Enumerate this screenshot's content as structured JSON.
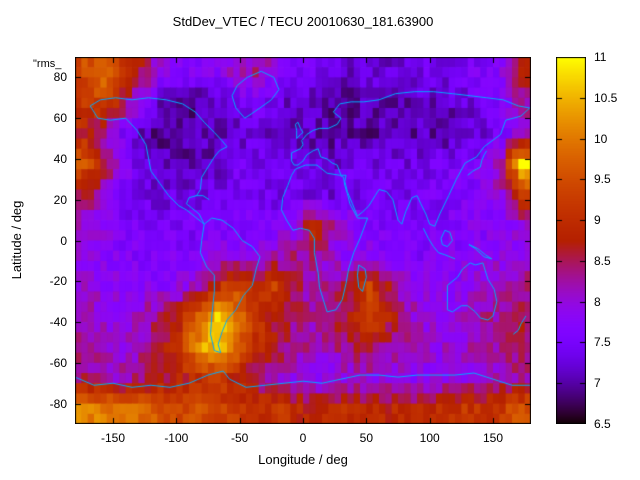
{
  "title": "StdDev_VTEC / TECU 20010630_181.63900",
  "key_label": "\"rms_",
  "axes": {
    "xlabel": "Longitude / deg",
    "ylabel": "Latitude / deg",
    "x_ticks": [
      -150,
      -100,
      -50,
      0,
      50,
      100,
      150
    ],
    "y_ticks": [
      -80,
      -60,
      -40,
      -20,
      0,
      20,
      40,
      60,
      80
    ],
    "xlim": [
      -180,
      180
    ],
    "ylim": [
      -90,
      90
    ]
  },
  "colorbar": {
    "ticks": [
      6.5,
      7,
      7.5,
      8,
      8.5,
      9,
      9.5,
      10,
      10.5,
      11
    ],
    "min": 6.5,
    "max": 11
  },
  "colors": {
    "coastline": "#00aaff",
    "background": "#ffffff",
    "text": "#000000",
    "palette_description": "gnuplot pm3d black-purple-violet-red-orange-yellow"
  },
  "chart_data": {
    "type": "heatmap",
    "title": "StdDev_VTEC / TECU 20010630_181.63900",
    "xlabel": "Longitude / deg",
    "ylabel": "Latitude / deg",
    "xlim": [
      -180,
      180
    ],
    "ylim": [
      -90,
      90
    ],
    "zlim": [
      6.5,
      11
    ],
    "grid_step_deg": 15,
    "rows_order": "north-to-south",
    "lon_centers": [
      -172.5,
      -157.5,
      -142.5,
      -127.5,
      -112.5,
      -97.5,
      -82.5,
      -67.5,
      -52.5,
      -37.5,
      -22.5,
      -7.5,
      7.5,
      22.5,
      37.5,
      52.5,
      67.5,
      82.5,
      97.5,
      112.5,
      127.5,
      142.5,
      157.5,
      172.5
    ],
    "lat_centers": [
      82.5,
      67.5,
      52.5,
      37.5,
      22.5,
      7.5,
      -7.5,
      -22.5,
      -37.5,
      -52.5,
      -67.5,
      -82.5
    ],
    "values": [
      [
        9.5,
        9.8,
        9.2,
        8.6,
        7.9,
        7.6,
        7.6,
        7.8,
        8.1,
        8.3,
        7.9,
        7.6,
        7.4,
        7.3,
        7.2,
        7.3,
        7.2,
        7.3,
        7.4,
        7.3,
        7.5,
        7.6,
        7.8,
        8.8
      ],
      [
        9.2,
        9.4,
        8.6,
        7.8,
        7.2,
        7.0,
        7.0,
        7.1,
        7.3,
        7.5,
        7.3,
        7.2,
        7.1,
        7.0,
        7.0,
        7.1,
        7.0,
        7.1,
        7.2,
        7.1,
        7.3,
        7.4,
        7.6,
        8.3
      ],
      [
        8.8,
        8.3,
        7.6,
        7.1,
        6.9,
        6.9,
        7.0,
        7.1,
        7.2,
        7.3,
        7.2,
        7.1,
        7.1,
        7.0,
        7.0,
        7.0,
        7.1,
        7.0,
        7.1,
        7.0,
        7.2,
        7.3,
        7.5,
        8.0
      ],
      [
        9.6,
        8.7,
        7.8,
        7.3,
        7.1,
        7.0,
        7.1,
        7.2,
        7.4,
        7.4,
        7.3,
        7.3,
        7.2,
        7.2,
        7.3,
        7.3,
        7.4,
        7.3,
        7.4,
        7.5,
        7.5,
        7.7,
        8.5,
        10.8
      ],
      [
        8.6,
        8.0,
        7.6,
        7.4,
        7.3,
        7.3,
        7.4,
        7.4,
        7.5,
        7.5,
        7.4,
        7.4,
        7.4,
        7.3,
        7.4,
        7.4,
        7.5,
        7.4,
        7.5,
        7.5,
        7.6,
        7.7,
        8.0,
        9.3
      ],
      [
        8.0,
        7.8,
        7.6,
        7.5,
        7.4,
        7.5,
        7.5,
        7.6,
        7.6,
        7.6,
        7.6,
        7.8,
        9.0,
        8.4,
        7.8,
        7.6,
        7.6,
        7.5,
        7.6,
        7.6,
        7.7,
        7.7,
        7.8,
        8.0
      ],
      [
        7.9,
        7.8,
        7.7,
        7.6,
        7.6,
        7.6,
        7.7,
        7.8,
        7.8,
        7.8,
        8.1,
        8.3,
        8.4,
        8.0,
        7.8,
        7.8,
        7.7,
        7.6,
        7.6,
        7.7,
        7.7,
        7.8,
        7.9,
        7.9
      ],
      [
        8.0,
        7.9,
        7.8,
        7.8,
        7.8,
        7.9,
        8.2,
        9.0,
        9.4,
        8.8,
        9.3,
        8.6,
        8.2,
        8.2,
        8.6,
        9.3,
        8.6,
        8.0,
        7.9,
        7.8,
        7.9,
        8.0,
        8.2,
        8.4
      ],
      [
        8.2,
        8.0,
        8.0,
        8.2,
        8.4,
        8.8,
        9.8,
        10.6,
        10.0,
        9.2,
        8.8,
        8.4,
        8.2,
        8.4,
        8.8,
        9.4,
        8.8,
        8.2,
        8.0,
        7.9,
        8.0,
        8.2,
        8.4,
        8.6
      ],
      [
        8.2,
        8.1,
        8.0,
        8.2,
        8.6,
        9.2,
        10.2,
        10.8,
        9.8,
        9.0,
        8.6,
        8.4,
        8.2,
        8.2,
        8.4,
        8.6,
        8.4,
        8.2,
        8.0,
        8.0,
        8.1,
        8.2,
        8.3,
        8.4
      ],
      [
        8.4,
        8.3,
        8.2,
        8.4,
        8.6,
        8.8,
        9.0,
        9.2,
        8.8,
        8.4,
        8.2,
        8.0,
        7.9,
        7.9,
        8.0,
        8.0,
        8.0,
        7.9,
        7.9,
        7.9,
        8.0,
        8.0,
        8.2,
        8.3
      ],
      [
        10.2,
        10.0,
        9.8,
        9.9,
        9.6,
        9.4,
        9.5,
        9.3,
        9.2,
        9.0,
        9.2,
        9.0,
        8.8,
        8.9,
        9.0,
        8.8,
        8.9,
        8.8,
        8.9,
        9.0,
        9.2,
        9.0,
        9.2,
        9.6
      ]
    ]
  },
  "coastlines": {
    "color": "#00aaff",
    "polylines": [
      [
        [
          -168,
          66
        ],
        [
          -162,
          60
        ],
        [
          -152,
          59
        ],
        [
          -140,
          60
        ],
        [
          -131,
          54
        ],
        [
          -124,
          47
        ],
        [
          -120,
          34
        ],
        [
          -113,
          28
        ],
        [
          -106,
          22
        ],
        [
          -98,
          17
        ],
        [
          -92,
          15
        ],
        [
          -86,
          12
        ],
        [
          -80,
          9
        ],
        [
          -78,
          8
        ],
        [
          -82,
          13
        ],
        [
          -88,
          16
        ],
        [
          -92,
          18
        ],
        [
          -90,
          21
        ],
        [
          -84,
          22
        ],
        [
          -81,
          25
        ],
        [
          -80,
          31
        ],
        [
          -76,
          35
        ],
        [
          -70,
          41
        ],
        [
          -66,
          44
        ],
        [
          -60,
          46
        ],
        [
          -64,
          49
        ],
        [
          -70,
          53
        ],
        [
          -78,
          58
        ],
        [
          -85,
          63
        ],
        [
          -95,
          67
        ],
        [
          -108,
          69
        ],
        [
          -122,
          70
        ],
        [
          -135,
          69
        ],
        [
          -148,
          70
        ],
        [
          -160,
          69
        ],
        [
          -168,
          66
        ]
      ],
      [
        [
          -46,
          60
        ],
        [
          -53,
          65
        ],
        [
          -56,
          71
        ],
        [
          -52,
          76
        ],
        [
          -44,
          80
        ],
        [
          -33,
          83
        ],
        [
          -23,
          80
        ],
        [
          -19,
          74
        ],
        [
          -25,
          69
        ],
        [
          -34,
          65
        ],
        [
          -41,
          62
        ],
        [
          -46,
          60
        ]
      ],
      [
        [
          -78,
          8
        ],
        [
          -72,
          11
        ],
        [
          -64,
          10
        ],
        [
          -55,
          6
        ],
        [
          -48,
          0
        ],
        [
          -40,
          -3
        ],
        [
          -34,
          -8
        ],
        [
          -37,
          -14
        ],
        [
          -40,
          -22
        ],
        [
          -47,
          -27
        ],
        [
          -53,
          -34
        ],
        [
          -60,
          -39
        ],
        [
          -64,
          -45
        ],
        [
          -67,
          -51
        ],
        [
          -65,
          -55
        ],
        [
          -70,
          -54
        ],
        [
          -73,
          -46
        ],
        [
          -72,
          -37
        ],
        [
          -70,
          -25
        ],
        [
          -70,
          -17
        ],
        [
          -76,
          -13
        ],
        [
          -81,
          -6
        ],
        [
          -80,
          0
        ],
        [
          -78,
          8
        ]
      ],
      [
        [
          -6,
          35
        ],
        [
          2,
          37
        ],
        [
          11,
          37
        ],
        [
          19,
          33
        ],
        [
          29,
          32
        ],
        [
          32,
          31
        ],
        [
          33,
          27
        ],
        [
          35,
          23
        ],
        [
          37,
          18
        ],
        [
          43,
          11
        ],
        [
          48,
          11
        ],
        [
          51,
          11
        ],
        [
          45,
          1
        ],
        [
          40,
          -6
        ],
        [
          36,
          -14
        ],
        [
          34,
          -21
        ],
        [
          31,
          -29
        ],
        [
          26,
          -34
        ],
        [
          19,
          -35
        ],
        [
          16,
          -29
        ],
        [
          13,
          -23
        ],
        [
          12,
          -16
        ],
        [
          9,
          -6
        ],
        [
          9,
          1
        ],
        [
          5,
          5
        ],
        [
          -2,
          6
        ],
        [
          -8,
          5
        ],
        [
          -13,
          10
        ],
        [
          -17,
          15
        ],
        [
          -16,
          21
        ],
        [
          -12,
          27
        ],
        [
          -9,
          32
        ],
        [
          -6,
          35
        ]
      ],
      [
        [
          -9,
          43
        ],
        [
          -2,
          45
        ],
        [
          0,
          47
        ],
        [
          -1,
          49
        ],
        [
          3,
          52
        ],
        [
          8,
          54
        ],
        [
          13,
          55
        ],
        [
          20,
          55
        ],
        [
          27,
          57
        ],
        [
          30,
          60
        ],
        [
          24,
          63
        ],
        [
          29,
          67
        ],
        [
          38,
          68
        ],
        [
          48,
          68
        ],
        [
          60,
          69
        ],
        [
          73,
          72
        ],
        [
          88,
          73
        ],
        [
          103,
          73
        ],
        [
          118,
          72
        ],
        [
          132,
          71
        ],
        [
          145,
          70
        ],
        [
          158,
          69
        ],
        [
          170,
          66
        ],
        [
          179,
          65
        ],
        [
          172,
          61
        ],
        [
          160,
          59
        ],
        [
          156,
          52
        ],
        [
          143,
          46
        ],
        [
          137,
          41
        ],
        [
          128,
          38
        ],
        [
          121,
          30
        ],
        [
          115,
          22
        ],
        [
          108,
          13
        ],
        [
          104,
          7
        ],
        [
          100,
          8
        ],
        [
          97,
          13
        ],
        [
          93,
          18
        ],
        [
          90,
          22
        ],
        [
          86,
          21
        ],
        [
          81,
          14
        ],
        [
          78,
          8
        ],
        [
          75,
          10
        ],
        [
          71,
          20
        ],
        [
          66,
          24
        ],
        [
          60,
          25
        ],
        [
          57,
          22
        ],
        [
          52,
          17
        ],
        [
          47,
          14
        ],
        [
          43,
          12
        ],
        [
          39,
          18
        ],
        [
          35,
          24
        ],
        [
          33,
          29
        ],
        [
          34,
          32
        ],
        [
          30,
          32
        ],
        [
          27,
          37
        ],
        [
          23,
          38
        ],
        [
          19,
          40
        ],
        [
          14,
          41
        ],
        [
          12,
          45
        ],
        [
          8,
          44
        ],
        [
          3,
          42
        ],
        [
          0,
          39
        ],
        [
          -4,
          37
        ],
        [
          -7,
          37
        ],
        [
          -9,
          39
        ],
        [
          -9,
          43
        ]
      ],
      [
        [
          114,
          -22
        ],
        [
          114,
          -34
        ],
        [
          118,
          -35
        ],
        [
          125,
          -32
        ],
        [
          130,
          -32
        ],
        [
          136,
          -35
        ],
        [
          140,
          -38
        ],
        [
          146,
          -39
        ],
        [
          150,
          -37
        ],
        [
          153,
          -30
        ],
        [
          151,
          -24
        ],
        [
          146,
          -19
        ],
        [
          142,
          -11
        ],
        [
          136,
          -12
        ],
        [
          132,
          -11
        ],
        [
          126,
          -14
        ],
        [
          122,
          -18
        ],
        [
          114,
          -22
        ]
      ],
      [
        [
          -180,
          -67
        ],
        [
          -165,
          -71
        ],
        [
          -150,
          -70
        ],
        [
          -135,
          -72
        ],
        [
          -120,
          -71
        ],
        [
          -105,
          -72
        ],
        [
          -90,
          -70
        ],
        [
          -75,
          -66
        ],
        [
          -63,
          -64
        ],
        [
          -58,
          -68
        ],
        [
          -45,
          -72
        ],
        [
          -30,
          -71
        ],
        [
          -15,
          -70
        ],
        [
          0,
          -69
        ],
        [
          15,
          -70
        ],
        [
          30,
          -68
        ],
        [
          45,
          -66
        ],
        [
          60,
          -66
        ],
        [
          75,
          -67
        ],
        [
          90,
          -66
        ],
        [
          105,
          -66
        ],
        [
          120,
          -66
        ],
        [
          135,
          -65
        ],
        [
          150,
          -68
        ],
        [
          165,
          -71
        ],
        [
          180,
          -71
        ]
      ],
      [
        [
          -5,
          50
        ],
        [
          -2,
          52
        ],
        [
          0,
          53
        ],
        [
          -2,
          55
        ],
        [
          -4,
          58
        ],
        [
          -6,
          57
        ],
        [
          -5,
          54
        ],
        [
          -5,
          50
        ]
      ],
      [
        [
          130,
          32
        ],
        [
          134,
          34
        ],
        [
          137,
          35
        ],
        [
          140,
          36
        ],
        [
          141,
          39
        ],
        [
          143,
          42
        ],
        [
          145,
          44
        ]
      ],
      [
        [
          44,
          -12
        ],
        [
          49,
          -14
        ],
        [
          50,
          -18
        ],
        [
          47,
          -25
        ],
        [
          44,
          -23
        ],
        [
          43,
          -17
        ],
        [
          44,
          -12
        ]
      ],
      [
        [
          166,
          -46
        ],
        [
          170,
          -44
        ],
        [
          172,
          -41
        ],
        [
          174,
          -39
        ],
        [
          176,
          -37
        ]
      ],
      [
        [
          95,
          6
        ],
        [
          99,
          1
        ],
        [
          103,
          -3
        ],
        [
          107,
          -6
        ],
        [
          112,
          -7
        ],
        [
          116,
          -8
        ],
        [
          120,
          -9
        ]
      ],
      [
        [
          109,
          1
        ],
        [
          112,
          5
        ],
        [
          116,
          4
        ],
        [
          118,
          0
        ],
        [
          114,
          -3
        ],
        [
          110,
          -2
        ],
        [
          109,
          1
        ]
      ],
      [
        [
          131,
          -2
        ],
        [
          138,
          -4
        ],
        [
          144,
          -7
        ],
        [
          149,
          -9
        ],
        [
          143,
          -8
        ],
        [
          136,
          -4
        ],
        [
          131,
          -2
        ]
      ],
      [
        [
          -85,
          22
        ],
        [
          -79,
          22
        ],
        [
          -74,
          20
        ]
      ]
    ]
  }
}
